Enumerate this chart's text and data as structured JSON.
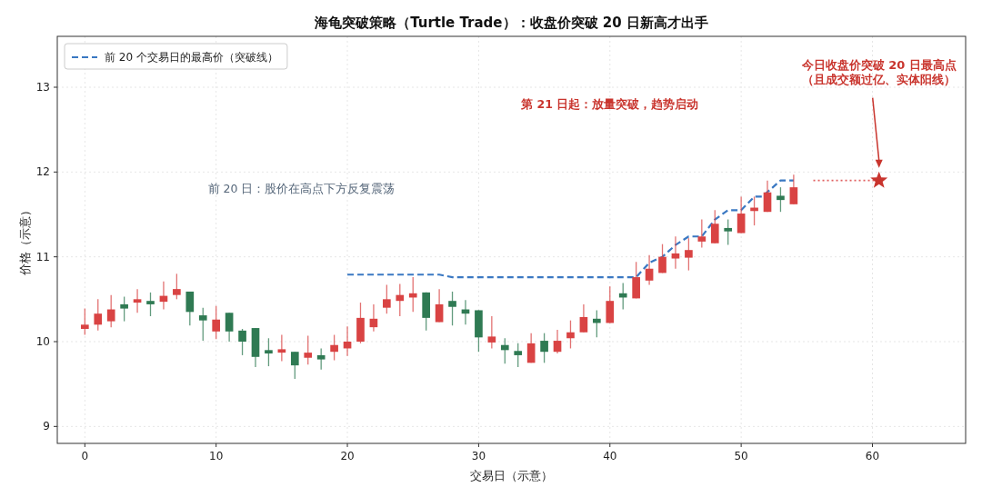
{
  "chart_data": {
    "type": "candlestick",
    "title": "海龟突破策略（Turtle Trade）：收盘价突破 20 日新高才出手",
    "xlabel": "交易日（示意）",
    "ylabel": "价格（示意）",
    "x": [
      0,
      1,
      2,
      3,
      4,
      5,
      6,
      7,
      8,
      9,
      10,
      11,
      12,
      13,
      14,
      15,
      16,
      17,
      18,
      19,
      20,
      21,
      22,
      23,
      24,
      25,
      26,
      27,
      28,
      29,
      30,
      31,
      32,
      33,
      34,
      35,
      36,
      37,
      38,
      39,
      40,
      41,
      42,
      43,
      44,
      45,
      46,
      47,
      48,
      49,
      50,
      51,
      52,
      53,
      54
    ],
    "ohlc": [
      [
        10.15,
        10.39,
        10.08,
        10.2
      ],
      [
        10.2,
        10.5,
        10.13,
        10.33
      ],
      [
        10.24,
        10.55,
        10.17,
        10.38
      ],
      [
        10.44,
        10.53,
        10.24,
        10.39
      ],
      [
        10.46,
        10.62,
        10.34,
        10.5
      ],
      [
        10.48,
        10.58,
        10.3,
        10.44
      ],
      [
        10.47,
        10.71,
        10.38,
        10.54
      ],
      [
        10.55,
        10.8,
        10.5,
        10.62
      ],
      [
        10.59,
        10.59,
        10.19,
        10.35
      ],
      [
        10.31,
        10.4,
        10.01,
        10.25
      ],
      [
        10.12,
        10.42,
        10.03,
        10.26
      ],
      [
        10.34,
        10.34,
        10.0,
        10.12
      ],
      [
        10.13,
        10.15,
        9.84,
        10.0
      ],
      [
        10.16,
        10.16,
        9.7,
        9.82
      ],
      [
        9.9,
        10.04,
        9.71,
        9.86
      ],
      [
        9.87,
        10.08,
        9.77,
        9.91
      ],
      [
        9.88,
        9.88,
        9.56,
        9.72
      ],
      [
        9.81,
        10.07,
        9.73,
        9.87
      ],
      [
        9.84,
        9.92,
        9.67,
        9.79
      ],
      [
        9.88,
        10.08,
        9.78,
        9.96
      ],
      [
        9.92,
        10.18,
        9.83,
        10.0
      ],
      [
        10.0,
        10.46,
        9.98,
        10.28
      ],
      [
        10.17,
        10.44,
        10.12,
        10.27
      ],
      [
        10.4,
        10.67,
        10.33,
        10.5
      ],
      [
        10.48,
        10.68,
        10.3,
        10.55
      ],
      [
        10.52,
        10.76,
        10.35,
        10.57
      ],
      [
        10.58,
        10.58,
        10.13,
        10.28
      ],
      [
        10.23,
        10.62,
        10.23,
        10.44
      ],
      [
        10.48,
        10.59,
        10.19,
        10.41
      ],
      [
        10.38,
        10.49,
        10.2,
        10.33
      ],
      [
        10.37,
        10.37,
        9.88,
        10.05
      ],
      [
        9.99,
        10.3,
        9.92,
        10.06
      ],
      [
        9.96,
        10.04,
        9.74,
        9.9
      ],
      [
        9.89,
        9.98,
        9.7,
        9.84
      ],
      [
        9.75,
        10.1,
        9.75,
        9.98
      ],
      [
        10.01,
        10.1,
        9.75,
        9.88
      ],
      [
        9.88,
        10.14,
        9.86,
        10.01
      ],
      [
        10.04,
        10.25,
        9.92,
        10.11
      ],
      [
        10.11,
        10.44,
        10.11,
        10.29
      ],
      [
        10.27,
        10.37,
        10.05,
        10.22
      ],
      [
        10.22,
        10.65,
        10.22,
        10.48
      ],
      [
        10.57,
        10.69,
        10.38,
        10.52
      ],
      [
        10.51,
        10.94,
        10.51,
        10.76
      ],
      [
        10.72,
        11.02,
        10.67,
        10.86
      ],
      [
        10.81,
        11.15,
        10.81,
        11.0
      ],
      [
        10.98,
        11.24,
        10.86,
        11.04
      ],
      [
        10.99,
        11.22,
        10.84,
        11.08
      ],
      [
        11.18,
        11.44,
        11.11,
        11.24
      ],
      [
        11.16,
        11.55,
        11.16,
        11.39
      ],
      [
        11.34,
        11.44,
        11.14,
        11.3
      ],
      [
        11.28,
        11.71,
        11.28,
        11.51
      ],
      [
        11.54,
        11.71,
        11.37,
        11.58
      ],
      [
        11.53,
        11.9,
        11.53,
        11.76
      ],
      [
        11.72,
        11.82,
        11.53,
        11.67
      ],
      [
        11.62,
        11.97,
        11.62,
        11.82
      ]
    ],
    "colors": [
      "#d94343",
      "#d94343",
      "#d94343",
      "#2f7a53",
      "#d94343",
      "#2f7a53",
      "#d94343",
      "#d94343",
      "#2f7a53",
      "#2f7a53",
      "#d94343",
      "#2f7a53",
      "#2f7a53",
      "#2f7a53",
      "#2f7a53",
      "#d94343",
      "#2f7a53",
      "#d94343",
      "#2f7a53",
      "#d94343",
      "#d94343",
      "#d94343",
      "#d94343",
      "#d94343",
      "#d94343",
      "#d94343",
      "#2f7a53",
      "#d94343",
      "#2f7a53",
      "#2f7a53",
      "#2f7a53",
      "#d94343",
      "#2f7a53",
      "#2f7a53",
      "#d94343",
      "#2f7a53",
      "#d94343",
      "#d94343",
      "#d94343",
      "#2f7a53",
      "#d94343",
      "#2f7a53",
      "#d94343",
      "#d94343",
      "#d94343",
      "#d94343",
      "#d94343",
      "#d94343",
      "#d94343",
      "#2f7a53",
      "#d94343",
      "#d94343",
      "#d94343",
      "#2f7a53",
      "#d94343"
    ],
    "series": [
      {
        "name": "前 20 个交易日的最高价（突破线）",
        "type": "line",
        "line_style": "dashed",
        "color": "#3a78c2",
        "x": [
          20,
          27,
          28,
          42,
          43,
          44,
          45,
          46,
          47,
          48,
          49,
          50,
          51,
          51.6,
          53,
          54
        ],
        "values": [
          10.79,
          10.79,
          10.76,
          10.76,
          10.93,
          11.0,
          11.14,
          11.24,
          11.24,
          11.44,
          11.55,
          11.55,
          11.71,
          11.71,
          11.9,
          11.9
        ]
      },
      {
        "type": "line",
        "line_style": "dotted",
        "color": "#e06060",
        "x": [
          55.5,
          60.5
        ],
        "values": [
          11.9,
          11.9
        ]
      },
      {
        "type": "scatter",
        "marker": "star",
        "color": "#c9352e",
        "x": [
          60.5
        ],
        "values": [
          11.9
        ]
      }
    ],
    "annotations": [
      "前 20 日：股价在高点下方反复震荡",
      "第 21 日起：放量突破，趋势启动",
      "今日收盘价突破 20 日最高点",
      "（且成交额过亿、实体阳线）"
    ],
    "xlim": [
      -2.1,
      67.1
    ],
    "ylim": [
      8.8,
      13.6
    ],
    "xticks": [
      0,
      10,
      20,
      30,
      40,
      50,
      60
    ],
    "yticks": [
      9,
      10,
      11,
      12,
      13
    ],
    "grid": true,
    "legend": "top left"
  }
}
